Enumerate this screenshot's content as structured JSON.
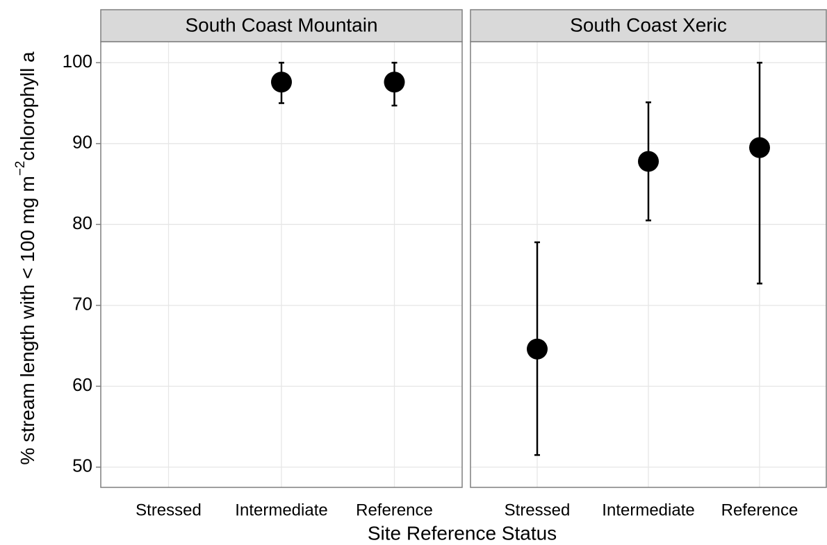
{
  "chart_data": [
    {
      "type": "pointrange",
      "title": "South Coast Mountain",
      "categories": [
        "Stressed",
        "Intermediate",
        "Reference"
      ],
      "values": [
        null,
        97.6,
        97.6
      ],
      "lower": [
        null,
        95,
        94.7
      ],
      "upper": [
        null,
        100,
        100
      ],
      "color": "#000000",
      "ylim": [
        47.5,
        102.6
      ],
      "yticks": [
        50,
        60,
        70,
        80,
        90,
        100
      ],
      "grid": true
    },
    {
      "type": "pointrange",
      "title": "South Coast Xeric",
      "categories": [
        "Stressed",
        "Intermediate",
        "Reference"
      ],
      "values": [
        64.6,
        87.8,
        89.5
      ],
      "lower": [
        51.5,
        80.5,
        72.7
      ],
      "upper": [
        77.8,
        95.1,
        100
      ],
      "color": "#000000",
      "ylim": [
        47.5,
        102.6
      ],
      "yticks": [
        50,
        60,
        70,
        80,
        90,
        100
      ],
      "grid": true
    }
  ],
  "x_label": "Site Reference Status",
  "y_label": [
    "% stream length with < 100 mg m",
    "−2",
    "chlorophyll a"
  ]
}
